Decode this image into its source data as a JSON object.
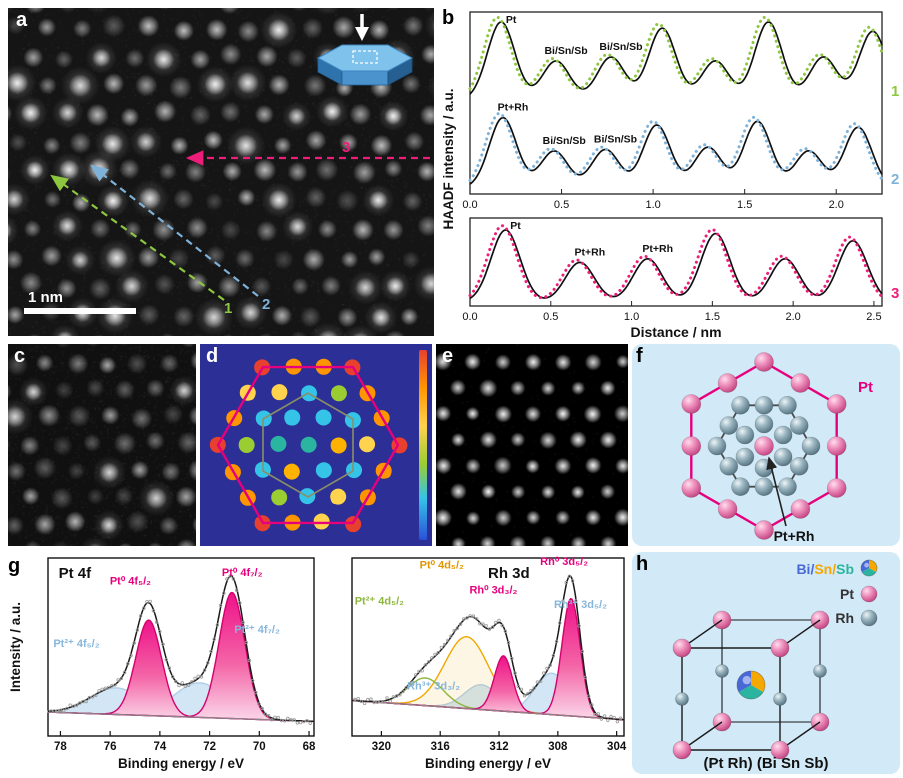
{
  "figure": {
    "panels": {
      "a": {
        "label": "a",
        "scale_bar": "1 nm",
        "arrows": [
          {
            "id": "1",
            "color": "#8dc63f"
          },
          {
            "id": "2",
            "color": "#7fb2d9"
          },
          {
            "id": "3",
            "color": "#ec1e79"
          }
        ]
      },
      "b": {
        "label": "b"
      },
      "c": {
        "label": "c"
      },
      "d": {
        "label": "d"
      },
      "e": {
        "label": "e"
      },
      "f": {
        "label": "f",
        "outer_atom_label": "Pt",
        "outer_atom_color": "#e6007e",
        "inner_atom_label": "Pt+Rh"
      },
      "g": {
        "label": "g"
      },
      "h": {
        "label": "h",
        "legend": {
          "row1": {
            "bi": "Bi/",
            "sn": "Sn/",
            "sb": "Sb",
            "bi_color": "#4968d8",
            "sn_color": "#f5a800",
            "sb_color": "#2bb5a0"
          },
          "row2": "Pt",
          "row3": "Rh"
        },
        "caption": "(Pt Rh) (Bi Sn Sb)"
      }
    }
  },
  "chart_data": [
    {
      "id": "haadf-intensity-profiles",
      "type": "line",
      "xlabel": "Distance / nm",
      "ylabel": "HAADF intensity / a.u.",
      "legend_position": "right",
      "panels": [
        {
          "name": "1",
          "color": "#8dc63f",
          "x_range": [
            0,
            2.25
          ],
          "sigma": 0.075,
          "xticks": [
            "0.0",
            "0.5",
            "1.0",
            "1.5",
            "2.0"
          ],
          "peaks": [
            {
              "x": 0.17,
              "h": 1.0
            },
            {
              "x": 0.47,
              "h": 0.5
            },
            {
              "x": 0.77,
              "h": 0.55
            },
            {
              "x": 1.05,
              "h": 0.92
            },
            {
              "x": 1.34,
              "h": 0.5
            },
            {
              "x": 1.63,
              "h": 1.0
            },
            {
              "x": 1.93,
              "h": 0.55
            },
            {
              "x": 2.2,
              "h": 0.88
            }
          ],
          "labels": [
            {
              "text": "Pt",
              "x": 0.17
            },
            {
              "text": "Bi/Sn/Sb",
              "x": 0.47
            },
            {
              "text": "Bi/Sn/Sb",
              "x": 0.77
            }
          ]
        },
        {
          "name": "2",
          "color": "#7fb2d9",
          "x_range": [
            0,
            2.25
          ],
          "sigma": 0.075,
          "xticks": [
            "0.0",
            "0.5",
            "1.0",
            "1.5",
            "2.0"
          ],
          "peaks": [
            {
              "x": 0.18,
              "h": 0.95
            },
            {
              "x": 0.46,
              "h": 0.5
            },
            {
              "x": 0.74,
              "h": 0.52
            },
            {
              "x": 1.02,
              "h": 0.85
            },
            {
              "x": 1.3,
              "h": 0.55
            },
            {
              "x": 1.57,
              "h": 0.9
            },
            {
              "x": 1.85,
              "h": 0.5
            },
            {
              "x": 2.12,
              "h": 0.82
            }
          ],
          "labels": [
            {
              "text": "Pt+Rh",
              "x": 0.18
            },
            {
              "text": "Bi/Sn/Sb",
              "x": 0.46
            },
            {
              "text": "Bi/Sn/Sb",
              "x": 0.74
            }
          ]
        },
        {
          "name": "3",
          "color": "#ec1e79",
          "x_range": [
            0,
            2.55
          ],
          "sigma": 0.09,
          "xticks": [
            "0.0",
            "0.5",
            "1.0",
            "1.5",
            "2.0",
            "2.5"
          ],
          "peaks": [
            {
              "x": 0.22,
              "h": 1.0
            },
            {
              "x": 0.68,
              "h": 0.55
            },
            {
              "x": 1.1,
              "h": 0.6
            },
            {
              "x": 1.52,
              "h": 0.95
            },
            {
              "x": 1.95,
              "h": 0.6
            },
            {
              "x": 2.37,
              "h": 0.85
            }
          ],
          "labels": [
            {
              "text": "Pt",
              "x": 0.22
            },
            {
              "text": "Pt+Rh",
              "x": 0.68
            },
            {
              "text": "Pt+Rh",
              "x": 1.1
            }
          ]
        }
      ]
    },
    {
      "id": "xps-pt-4f",
      "type": "area",
      "title": "Pt 4f",
      "xlabel": "Binding energy / eV",
      "ylabel": "Intensity / a.u.",
      "x_range": [
        78.5,
        67.8
      ],
      "xticks": [
        "78",
        "76",
        "74",
        "72",
        "70",
        "68"
      ],
      "baseline": [
        0.12,
        0.05
      ],
      "title_pos": [
        0.04,
        0.04
      ],
      "components": [
        {
          "label": "Pt⁰ 4f₅/₂",
          "center": 74.45,
          "sigma": 0.52,
          "height": 0.72,
          "style": "pink",
          "label_pos": [
            0.31,
            0.15
          ]
        },
        {
          "label": "Pt⁰ 4f₇/₂",
          "center": 71.1,
          "sigma": 0.52,
          "height": 0.95,
          "style": "pink",
          "label_pos": [
            0.73,
            0.1
          ]
        },
        {
          "label": "Pt²⁺ 4f₅/₂",
          "center": 75.75,
          "sigma": 1.05,
          "height": 0.2,
          "style": "blue",
          "label_pos": [
            0.02,
            0.5
          ],
          "anchor": "start"
        },
        {
          "label": "Pt²⁺ 4f₇/₂",
          "center": 72.4,
          "sigma": 1.05,
          "height": 0.26,
          "style": "blue",
          "label_pos": [
            0.7,
            0.42
          ],
          "anchor": "start"
        }
      ]
    },
    {
      "id": "xps-rh-3d",
      "type": "area",
      "title": "Rh 3d",
      "xlabel": "Binding energy / eV",
      "ylabel": "",
      "x_range": [
        322,
        303.5
      ],
      "xticks": [
        "320",
        "316",
        "312",
        "308",
        "304"
      ],
      "baseline": [
        0.2,
        0.06
      ],
      "title_pos": [
        0.5,
        0.04
      ],
      "components": [
        {
          "label": "Pt⁰ 4d₅/₂",
          "center": 314.2,
          "sigma": 1.5,
          "height": 0.52,
          "style": "yellow",
          "label_pos": [
            0.33,
            0.06
          ]
        },
        {
          "label": "Pt²⁺ 4d₅/₂",
          "center": 317.0,
          "sigma": 1.2,
          "height": 0.2,
          "style": "green",
          "label_pos": [
            0.01,
            0.26
          ],
          "anchor": "start"
        },
        {
          "label": "Rh⁰ 3d₃/₂",
          "center": 311.7,
          "sigma": 0.62,
          "height": 0.4,
          "style": "pink",
          "label_pos": [
            0.52,
            0.2
          ]
        },
        {
          "label": "Rh⁰ 3d₅/₂",
          "center": 307.1,
          "sigma": 0.62,
          "height": 0.85,
          "style": "pink",
          "label_pos": [
            0.78,
            0.04
          ]
        },
        {
          "label": "Rh³⁺ 3d₅/₂",
          "center": 308.4,
          "sigma": 1.15,
          "height": 0.3,
          "style": "blue",
          "label_pos": [
            0.84,
            0.28
          ]
        },
        {
          "label": "Rh³⁺ 3d₃/₂",
          "center": 313.2,
          "sigma": 1.15,
          "height": 0.18,
          "style": "blue",
          "label_pos": [
            0.3,
            0.74
          ]
        }
      ]
    }
  ]
}
